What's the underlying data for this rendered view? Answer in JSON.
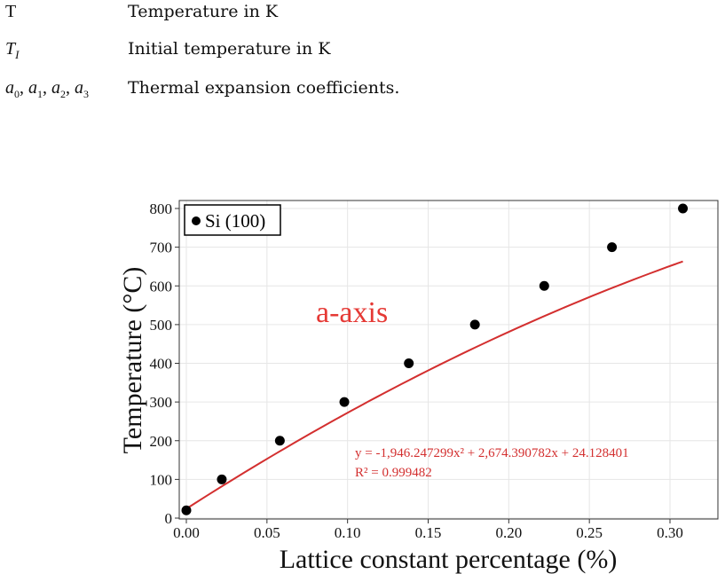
{
  "definitions": [
    {
      "symbol": "T",
      "description": "Temperature in K"
    },
    {
      "symbol": "T_I",
      "description": "Initial temperature in K"
    },
    {
      "symbol": "a0, a1, a2, a3",
      "description": "Thermal expansion coefficients."
    }
  ],
  "chart_data": {
    "type": "scatter",
    "xlabel": "Lattice constant percentage (%)",
    "ylabel": "Temperature (°C)",
    "xlim": [
      0.0,
      0.32
    ],
    "ylim": [
      0,
      800
    ],
    "xticks": [
      "0.00",
      "0.05",
      "0.10",
      "0.15",
      "0.20",
      "0.25",
      "0.30"
    ],
    "yticks": [
      "0",
      "100",
      "200",
      "300",
      "400",
      "500",
      "600",
      "700",
      "800"
    ],
    "grid": true,
    "legend": {
      "position": "top-left",
      "label": "Si (100)"
    },
    "annotation": "a-axis",
    "equation": "y = -1,946.247299x² + 2,674.390782x + 24.128401",
    "r_squared": "R² = 0.999482",
    "fit": {
      "a": -1946.247299,
      "b": 2674.390782,
      "c": 24.128401
    },
    "series": [
      {
        "name": "Si (100)",
        "x": [
          0.0,
          0.022,
          0.058,
          0.098,
          0.138,
          0.179,
          0.222,
          0.264,
          0.308
        ],
        "y": [
          20,
          100,
          200,
          300,
          400,
          500,
          600,
          700,
          800
        ]
      }
    ],
    "colors": {
      "points": "#000000",
      "fit_line": "#d32f2f",
      "annotation": "#e53935",
      "grid": "#e6e6e6"
    }
  }
}
